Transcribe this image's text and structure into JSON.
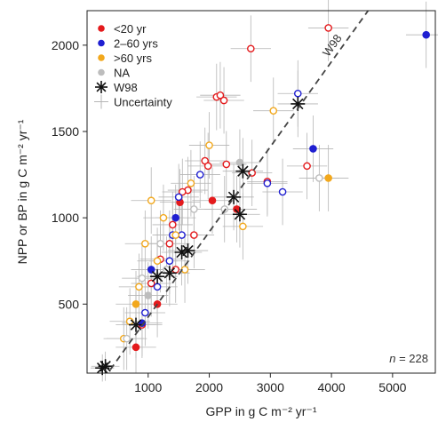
{
  "chart_data": {
    "type": "scatter",
    "xlabel": "GPP in g C m⁻² yr⁻¹",
    "ylabel": "NPP or BP in g C m⁻² yr⁻¹",
    "xlim": [
      0,
      5700
    ],
    "ylim": [
      100,
      2200
    ],
    "xticks": [
      1000,
      2000,
      3000,
      4000,
      5000
    ],
    "yticks": [
      500,
      1000,
      1500,
      2000
    ],
    "xtick_labels": [
      "1000",
      "2000",
      "3000",
      "4000",
      "5000"
    ],
    "ytick_labels": [
      "500",
      "1000",
      "1500",
      "2000"
    ],
    "grid": false,
    "legend_position": "top-left",
    "annotation": {
      "n_label": "n",
      "n_value": "= 228"
    },
    "reference_line": {
      "label": "W98",
      "style": "dashed",
      "color": "#444444",
      "points": [
        [
          380,
          120
        ],
        [
          4600,
          2200
        ]
      ]
    },
    "legend": [
      {
        "label": "<20 yr",
        "color": "#e41a1c",
        "marker": "dot"
      },
      {
        "label": "2–60 yrs",
        "color": "#1f1fd1",
        "marker": "dot"
      },
      {
        "label": ">60 yrs",
        "color": "#f2a81d",
        "marker": "dot"
      },
      {
        "label": "NA",
        "color": "#bdbdbd",
        "marker": "dot"
      },
      {
        "label": "W98",
        "color": "#111111",
        "marker": "star"
      },
      {
        "label": "Uncertainty",
        "color": "#b5b5b5",
        "marker": "cross"
      }
    ],
    "series": [
      {
        "name": "<20 yr",
        "color": "#e41a1c",
        "marker": "circle",
        "x": [
          3950,
          2680,
          2120,
          2180,
          2240,
          1930,
          1980,
          2280,
          2950,
          2700,
          1650,
          1560,
          1520,
          1400,
          1350,
          1200,
          1150,
          900,
          800,
          1050,
          2050,
          2450,
          3600,
          1750,
          1450
        ],
        "y": [
          2100,
          1980,
          1700,
          1710,
          1680,
          1330,
          1300,
          1310,
          1210,
          1260,
          1160,
          1150,
          1090,
          960,
          850,
          760,
          500,
          380,
          250,
          620,
          1100,
          1050,
          1300,
          900,
          700
        ],
        "filled": [
          false,
          false,
          false,
          false,
          false,
          false,
          false,
          false,
          false,
          false,
          false,
          false,
          true,
          false,
          false,
          false,
          true,
          false,
          true,
          false,
          true,
          true,
          false,
          false,
          false
        ]
      },
      {
        "name": "2–60 yrs",
        "color": "#1f1fd1",
        "marker": "circle",
        "x": [
          5550,
          3450,
          3700,
          3200,
          2950,
          1850,
          1500,
          1450,
          1550,
          1400,
          1050,
          1150,
          950,
          900,
          1350
        ],
        "y": [
          2060,
          1720,
          1400,
          1150,
          1200,
          1250,
          1120,
          1000,
          900,
          900,
          700,
          600,
          450,
          390,
          750
        ],
        "filled": [
          true,
          false,
          true,
          false,
          false,
          false,
          false,
          true,
          false,
          false,
          true,
          false,
          false,
          true,
          false
        ]
      },
      {
        "name": ">60 yrs",
        "color": "#f2a81d",
        "marker": "circle",
        "x": [
          3050,
          3950,
          2000,
          1700,
          1050,
          950,
          1250,
          1600,
          1450,
          800,
          850,
          1150,
          700,
          600,
          2550
        ],
        "y": [
          1620,
          1230,
          1420,
          1200,
          1100,
          850,
          1000,
          700,
          900,
          500,
          600,
          750,
          400,
          300,
          950
        ],
        "filled": [
          false,
          true,
          false,
          false,
          false,
          false,
          false,
          false,
          false,
          true,
          false,
          false,
          false,
          false,
          false
        ]
      },
      {
        "name": "NA",
        "color": "#bdbdbd",
        "marker": "circle",
        "x": [
          3800,
          2500,
          2250,
          1750,
          1200,
          1000,
          1300,
          650,
          900
        ],
        "y": [
          1230,
          1320,
          1050,
          1050,
          850,
          550,
          700,
          300,
          650
        ],
        "filled": [
          false,
          true,
          false,
          false,
          false,
          true,
          false,
          false,
          false
        ]
      },
      {
        "name": "W98",
        "color": "#111111",
        "marker": "star",
        "x": [
          3450,
          2550,
          2400,
          2500,
          1650,
          1550,
          1350,
          1150,
          800,
          300,
          250
        ],
        "y": [
          1660,
          1270,
          1120,
          1020,
          810,
          800,
          680,
          660,
          380,
          140,
          130
        ]
      }
    ]
  }
}
